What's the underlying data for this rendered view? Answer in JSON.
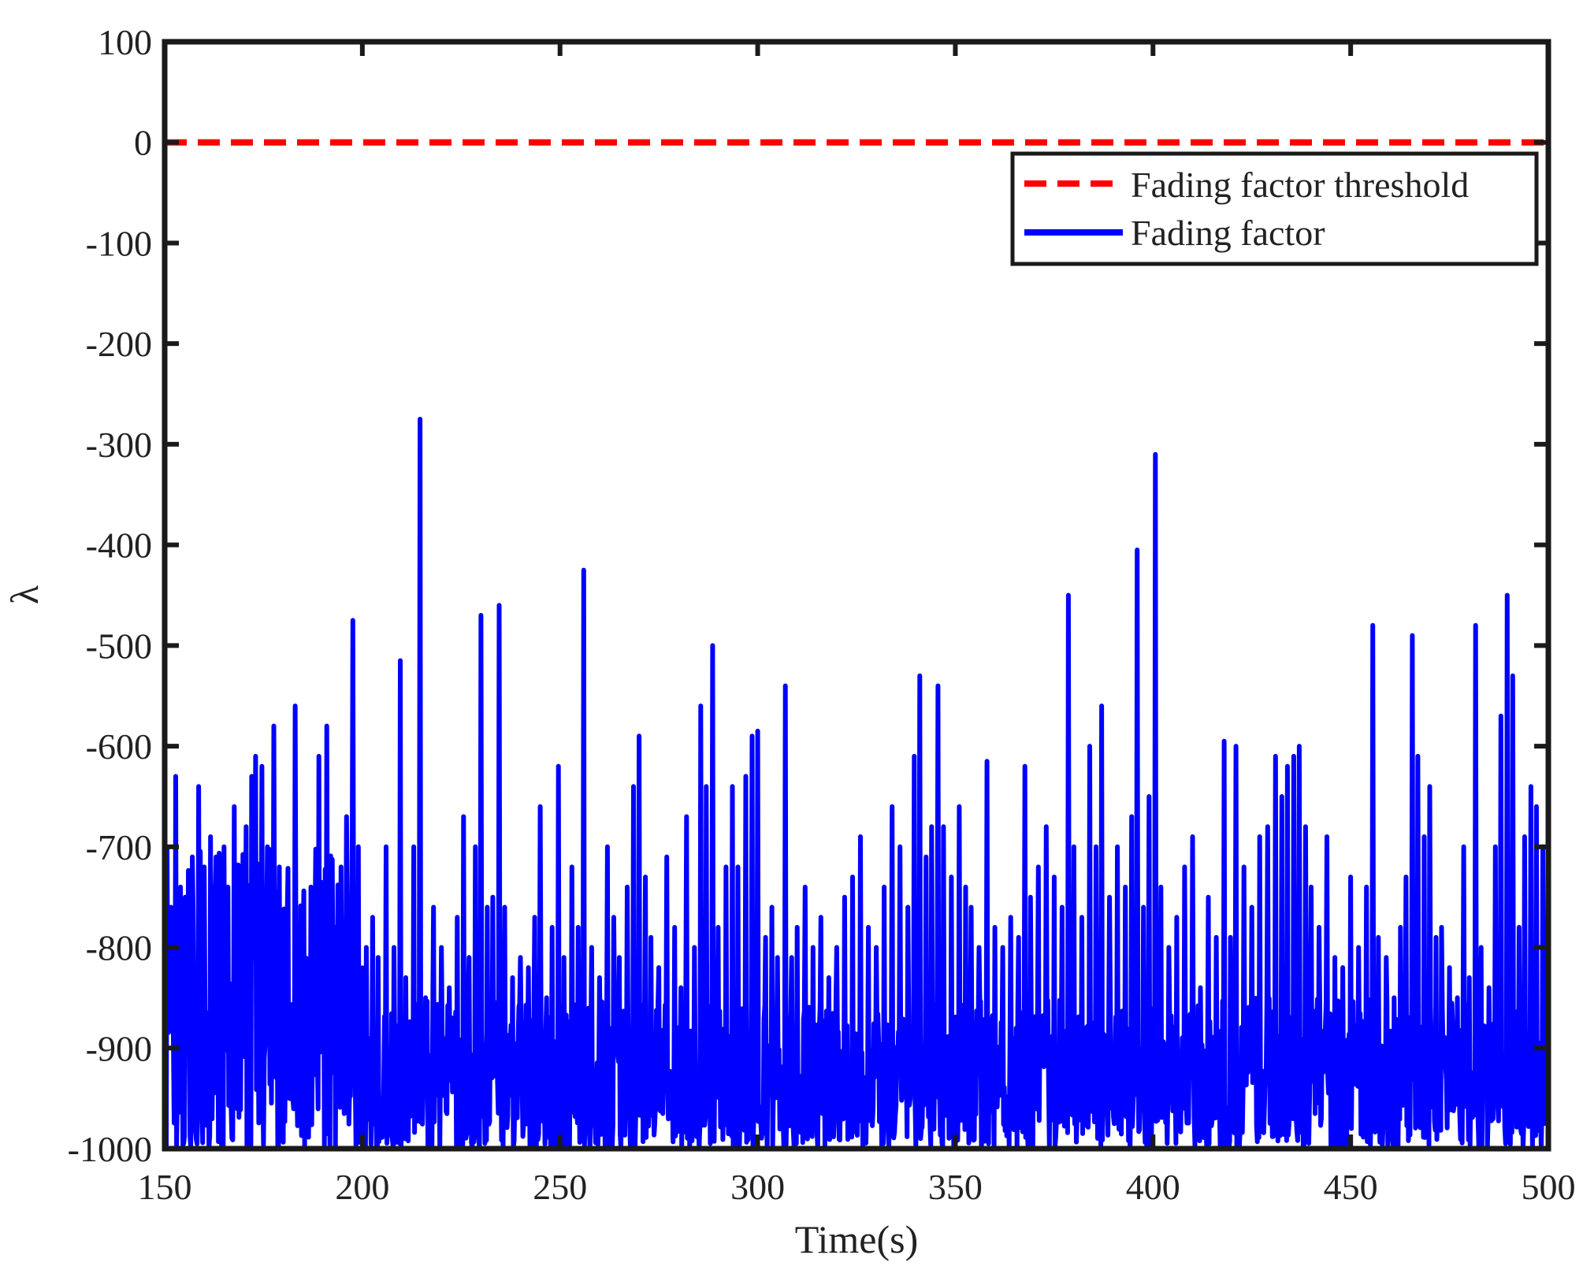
{
  "chart_data": {
    "type": "line",
    "title": "",
    "xlabel": "Time(s)",
    "ylabel": "λ",
    "xlim": [
      150,
      500
    ],
    "ylim": [
      -1000,
      100
    ],
    "xticks": [
      150,
      200,
      250,
      300,
      350,
      400,
      450,
      500
    ],
    "yticks": [
      100,
      0,
      -100,
      -200,
      -300,
      -400,
      -500,
      -600,
      -700,
      -800,
      -900,
      -1000
    ],
    "xtick_labels": [
      "150",
      "200",
      "250",
      "300",
      "350",
      "400",
      "450",
      "500"
    ],
    "ytick_labels": [
      "100",
      "0",
      "-100",
      "-200",
      "-300",
      "-400",
      "-500",
      "-600",
      "-700",
      "-800",
      "-900",
      "-1000"
    ],
    "grid": false,
    "legend_position": "top-right",
    "colors": {
      "threshold": "#ff0000",
      "factor": "#0000ff",
      "axes": "#1a1a1a"
    },
    "series": [
      {
        "name": "Fading factor threshold",
        "style": "dashed",
        "color": "#ff0000",
        "x": [
          150,
          500
        ],
        "y": [
          0,
          0
        ]
      },
      {
        "name": "Fading factor",
        "style": "solid",
        "color": "#0000ff",
        "base_range": [
          -1000,
          -850
        ],
        "sample_step": 0.2,
        "peaks": [
          [
            150.5,
            -700
          ],
          [
            151.5,
            -760
          ],
          [
            152.8,
            -630
          ],
          [
            154,
            -740
          ],
          [
            155.5,
            -800
          ],
          [
            157,
            -710
          ],
          [
            158.5,
            -640
          ],
          [
            160,
            -720
          ],
          [
            161.5,
            -690
          ],
          [
            163,
            -710
          ],
          [
            164,
            -760
          ],
          [
            165,
            -700
          ],
          [
            166,
            -740
          ],
          [
            167.5,
            -660
          ],
          [
            169,
            -750
          ],
          [
            170.5,
            -680
          ],
          [
            172,
            -630
          ],
          [
            173,
            -610
          ],
          [
            174.5,
            -620
          ],
          [
            176,
            -700
          ],
          [
            177.5,
            -580
          ],
          [
            179,
            -720
          ],
          [
            181,
            -770
          ],
          [
            183,
            -560
          ],
          [
            185,
            -790
          ],
          [
            187,
            -740
          ],
          [
            189,
            -610
          ],
          [
            191,
            -580
          ],
          [
            193,
            -780
          ],
          [
            194.5,
            -720
          ],
          [
            196,
            -670
          ],
          [
            197.5,
            -475
          ],
          [
            199,
            -700
          ],
          [
            201,
            -800
          ],
          [
            202.5,
            -770
          ],
          [
            204,
            -810
          ],
          [
            206,
            -700
          ],
          [
            208,
            -800
          ],
          [
            209.5,
            -515
          ],
          [
            211,
            -830
          ],
          [
            213,
            -700
          ],
          [
            214.5,
            -275
          ],
          [
            216,
            -850
          ],
          [
            218,
            -760
          ],
          [
            220,
            -800
          ],
          [
            222,
            -840
          ],
          [
            224,
            -770
          ],
          [
            225.5,
            -670
          ],
          [
            227,
            -810
          ],
          [
            228.5,
            -700
          ],
          [
            230,
            -470
          ],
          [
            231.5,
            -760
          ],
          [
            233,
            -750
          ],
          [
            234.5,
            -460
          ],
          [
            236,
            -760
          ],
          [
            238,
            -830
          ],
          [
            240,
            -810
          ],
          [
            242,
            -820
          ],
          [
            243.5,
            -770
          ],
          [
            245,
            -660
          ],
          [
            246.5,
            -850
          ],
          [
            248,
            -780
          ],
          [
            249.5,
            -620
          ],
          [
            251,
            -810
          ],
          [
            253,
            -720
          ],
          [
            254.5,
            -780
          ],
          [
            256,
            -425
          ],
          [
            258,
            -800
          ],
          [
            260,
            -830
          ],
          [
            262,
            -700
          ],
          [
            263.5,
            -770
          ],
          [
            265,
            -810
          ],
          [
            267,
            -740
          ],
          [
            268.5,
            -640
          ],
          [
            270,
            -590
          ],
          [
            271.5,
            -730
          ],
          [
            273,
            -790
          ],
          [
            275,
            -820
          ],
          [
            277,
            -710
          ],
          [
            279,
            -780
          ],
          [
            280.5,
            -840
          ],
          [
            282,
            -670
          ],
          [
            284,
            -800
          ],
          [
            285.5,
            -560
          ],
          [
            287,
            -640
          ],
          [
            288.5,
            -500
          ],
          [
            290,
            -780
          ],
          [
            292,
            -720
          ],
          [
            293.5,
            -640
          ],
          [
            295,
            -720
          ],
          [
            297,
            -630
          ],
          [
            298.5,
            -590
          ],
          [
            300,
            -585
          ],
          [
            302,
            -790
          ],
          [
            303.5,
            -760
          ],
          [
            305,
            -810
          ],
          [
            307,
            -540
          ],
          [
            308.5,
            -810
          ],
          [
            310,
            -780
          ],
          [
            312,
            -740
          ],
          [
            314,
            -800
          ],
          [
            316,
            -770
          ],
          [
            318,
            -830
          ],
          [
            320,
            -800
          ],
          [
            322,
            -750
          ],
          [
            324,
            -730
          ],
          [
            326,
            -690
          ],
          [
            328,
            -780
          ],
          [
            330,
            -800
          ],
          [
            332,
            -740
          ],
          [
            334,
            -660
          ],
          [
            336,
            -700
          ],
          [
            338,
            -760
          ],
          [
            339.5,
            -610
          ],
          [
            341,
            -530
          ],
          [
            342.5,
            -710
          ],
          [
            344,
            -680
          ],
          [
            345.5,
            -540
          ],
          [
            347,
            -680
          ],
          [
            349,
            -730
          ],
          [
            351,
            -660
          ],
          [
            352.5,
            -740
          ],
          [
            354,
            -760
          ],
          [
            356,
            -800
          ],
          [
            358,
            -615
          ],
          [
            360,
            -780
          ],
          [
            362,
            -800
          ],
          [
            364,
            -770
          ],
          [
            366,
            -790
          ],
          [
            367.5,
            -620
          ],
          [
            369,
            -750
          ],
          [
            371,
            -720
          ],
          [
            373,
            -680
          ],
          [
            375,
            -730
          ],
          [
            377,
            -760
          ],
          [
            378.5,
            -450
          ],
          [
            380,
            -700
          ],
          [
            382,
            -770
          ],
          [
            384,
            -600
          ],
          [
            385.5,
            -700
          ],
          [
            387,
            -560
          ],
          [
            389,
            -750
          ],
          [
            391,
            -700
          ],
          [
            393,
            -740
          ],
          [
            394.5,
            -670
          ],
          [
            396,
            -405
          ],
          [
            397.5,
            -760
          ],
          [
            399,
            -650
          ],
          [
            400.5,
            -310
          ],
          [
            402,
            -740
          ],
          [
            404,
            -800
          ],
          [
            406,
            -770
          ],
          [
            408,
            -720
          ],
          [
            410,
            -690
          ],
          [
            412,
            -840
          ],
          [
            414,
            -750
          ],
          [
            416,
            -790
          ],
          [
            418,
            -595
          ],
          [
            419.5,
            -790
          ],
          [
            421,
            -600
          ],
          [
            423,
            -720
          ],
          [
            425,
            -760
          ],
          [
            427,
            -690
          ],
          [
            429,
            -680
          ],
          [
            431,
            -610
          ],
          [
            432.5,
            -650
          ],
          [
            434,
            -620
          ],
          [
            435.5,
            -610
          ],
          [
            437,
            -600
          ],
          [
            438.5,
            -680
          ],
          [
            440,
            -740
          ],
          [
            442,
            -780
          ],
          [
            444,
            -690
          ],
          [
            446,
            -810
          ],
          [
            448,
            -820
          ],
          [
            450,
            -730
          ],
          [
            452,
            -800
          ],
          [
            454,
            -740
          ],
          [
            455.5,
            -480
          ],
          [
            457,
            -790
          ],
          [
            459,
            -810
          ],
          [
            461,
            -850
          ],
          [
            462.5,
            -780
          ],
          [
            464,
            -730
          ],
          [
            465.5,
            -490
          ],
          [
            467,
            -610
          ],
          [
            468.5,
            -690
          ],
          [
            470,
            -640
          ],
          [
            471.5,
            -790
          ],
          [
            473,
            -780
          ],
          [
            475,
            -820
          ],
          [
            477,
            -850
          ],
          [
            478.5,
            -700
          ],
          [
            480,
            -830
          ],
          [
            481.5,
            -480
          ],
          [
            483,
            -800
          ],
          [
            485,
            -840
          ],
          [
            486.5,
            -700
          ],
          [
            488,
            -570
          ],
          [
            489.5,
            -450
          ],
          [
            491,
            -530
          ],
          [
            492.5,
            -780
          ],
          [
            494,
            -690
          ],
          [
            495.5,
            -640
          ],
          [
            497,
            -660
          ],
          [
            498.5,
            -700
          ],
          [
            500,
            -760
          ]
        ]
      }
    ]
  }
}
